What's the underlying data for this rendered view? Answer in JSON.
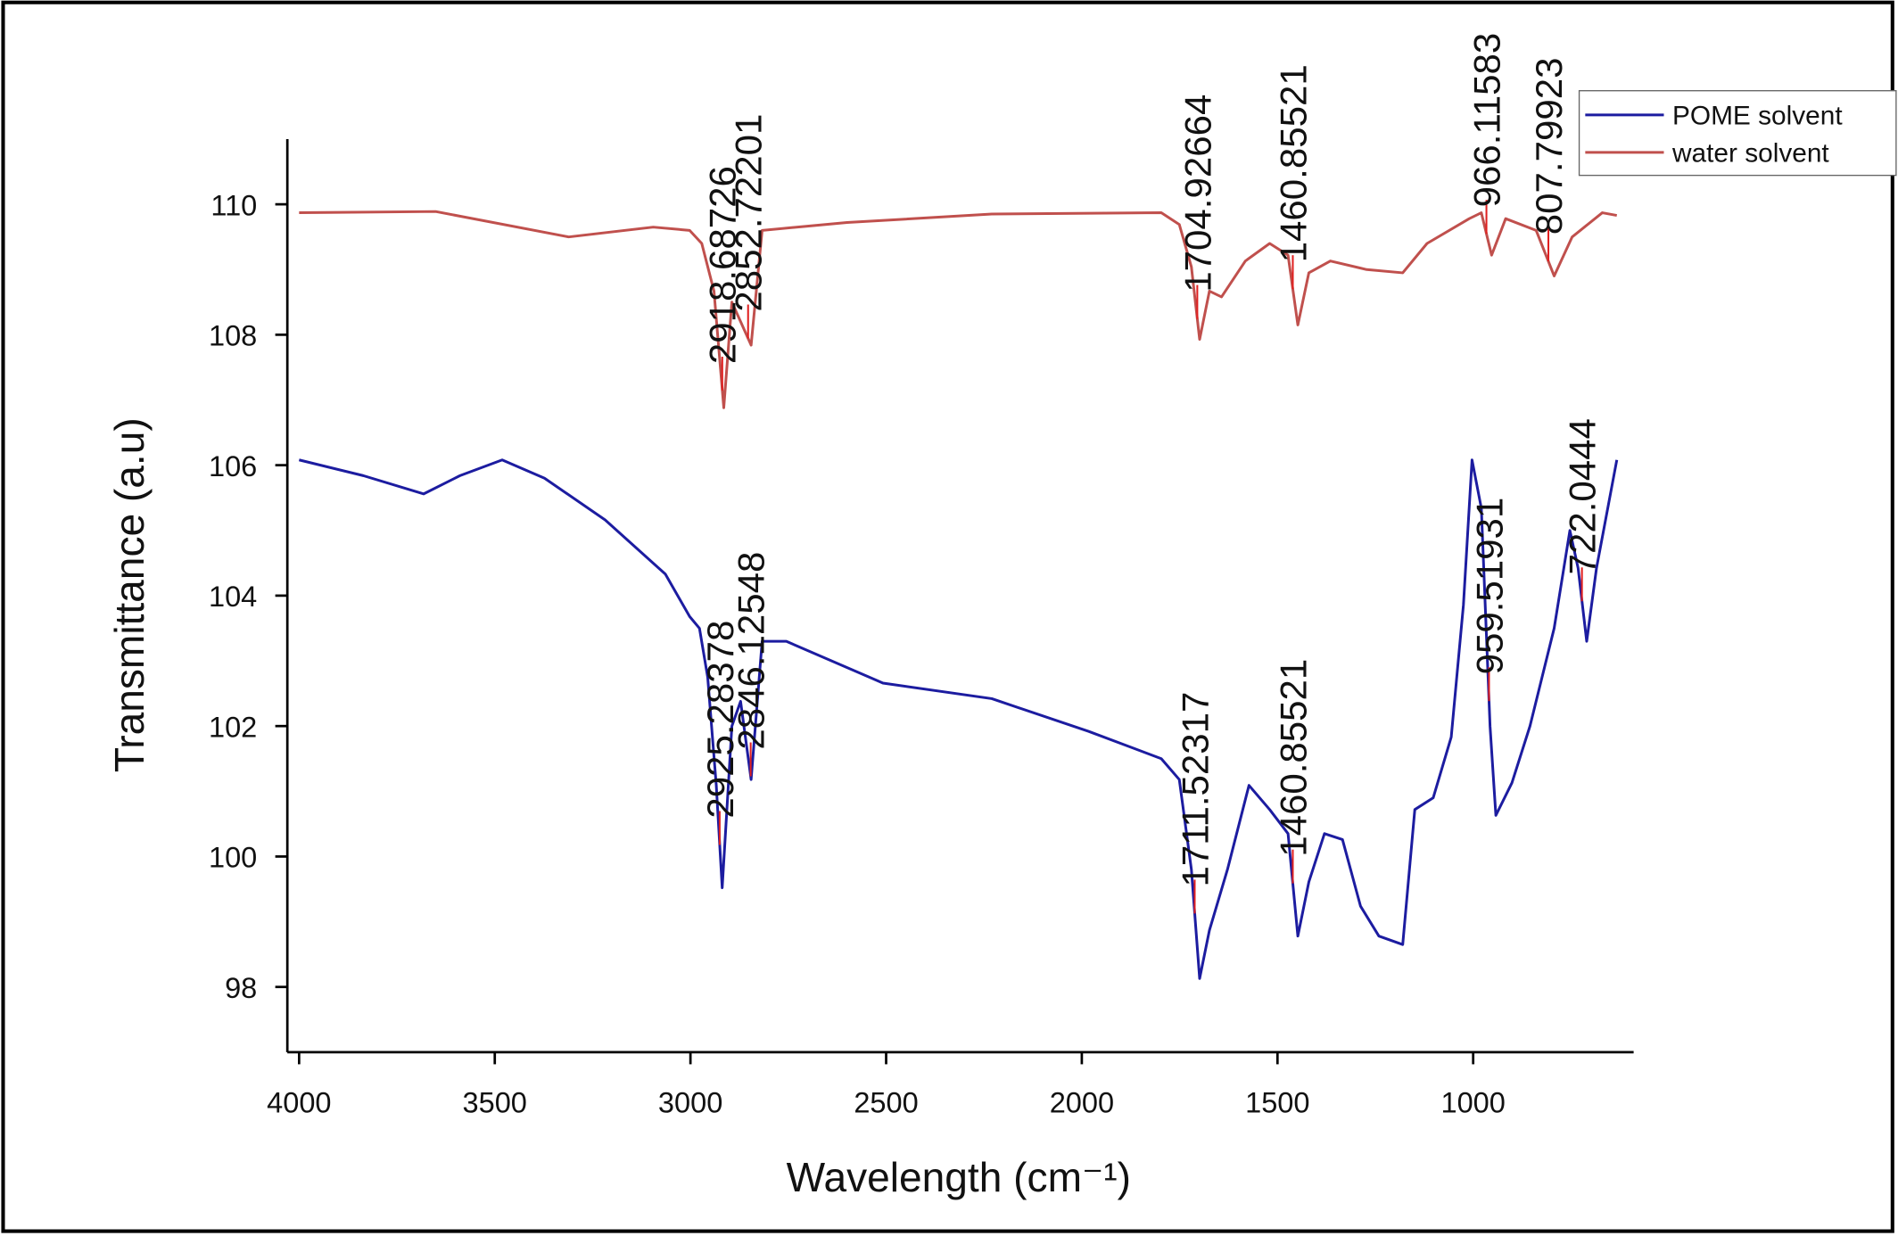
{
  "chart_data": {
    "type": "line",
    "xlabel": "Wavelength (cm⁻¹)",
    "ylabel": "Transmittance (a.u)",
    "xlim": [
      4030,
      590
    ],
    "ylim": [
      97,
      111
    ],
    "xticks": [
      4000,
      3500,
      3000,
      2500,
      2000,
      1500,
      1000
    ],
    "yticks": [
      98,
      100,
      102,
      104,
      106,
      108,
      110
    ],
    "legend": "upper right",
    "series": [
      {
        "name": "POME solvent",
        "color": "#1c1ca0",
        "x": [
          4000,
          3836,
          3682,
          3589,
          3481,
          3373,
          3218,
          3064,
          3002,
          2977,
          2956,
          2934,
          2919,
          2894,
          2872,
          2845,
          2817,
          2755,
          2508,
          2230,
          1983,
          1797,
          1751,
          1720,
          1699,
          1674,
          1628,
          1573,
          1520,
          1473,
          1448,
          1420,
          1380,
          1334,
          1288,
          1241,
          1180,
          1149,
          1102,
          1056,
          1025,
          1003,
          979,
          957,
          942,
          901,
          855,
          793,
          753,
          732,
          710,
          685,
          633
        ],
        "values": [
          106.08,
          105.84,
          105.56,
          105.84,
          106.08,
          105.8,
          105.16,
          104.33,
          103.68,
          103.5,
          102.75,
          101.09,
          99.52,
          102.0,
          102.38,
          101.18,
          103.3,
          103.3,
          102.66,
          102.42,
          101.92,
          101.5,
          101.18,
          99.8,
          98.13,
          98.87,
          99.8,
          101.09,
          100.72,
          100.35,
          98.78,
          99.61,
          100.35,
          100.26,
          99.24,
          98.78,
          98.65,
          100.72,
          100.9,
          101.83,
          103.86,
          106.08,
          105.34,
          102.0,
          100.63,
          101.13,
          102.0,
          103.5,
          105.0,
          104.42,
          103.3,
          104.42,
          106.08
        ],
        "peaks": [
          2925.28378,
          2846.12548,
          1711.52317,
          1460.85521,
          959.51931,
          722.0444
        ]
      },
      {
        "name": "water solvent",
        "color": "#c0504d",
        "x": [
          4000,
          3651,
          3311,
          3095,
          3002,
          2971,
          2940,
          2915,
          2894,
          2845,
          2817,
          2600,
          2230,
          1797,
          1751,
          1720,
          1699,
          1674,
          1643,
          1582,
          1520,
          1473,
          1448,
          1420,
          1365,
          1272,
          1180,
          1118,
          1010,
          979,
          953,
          917,
          839,
          793,
          747,
          670,
          633
        ],
        "values": [
          109.87,
          109.89,
          109.5,
          109.65,
          109.6,
          109.4,
          108.67,
          106.88,
          108.5,
          107.84,
          109.6,
          109.72,
          109.85,
          109.87,
          109.69,
          109.04,
          107.93,
          108.67,
          108.58,
          109.13,
          109.4,
          109.22,
          108.15,
          108.95,
          109.13,
          109.0,
          108.95,
          109.4,
          109.78,
          109.87,
          109.22,
          109.78,
          109.6,
          108.9,
          109.5,
          109.87,
          109.83
        ],
        "peaks": [
          2918.68726,
          2852.72201,
          1704.92664,
          1460.85521,
          966.11583,
          807.79923
        ]
      }
    ]
  }
}
